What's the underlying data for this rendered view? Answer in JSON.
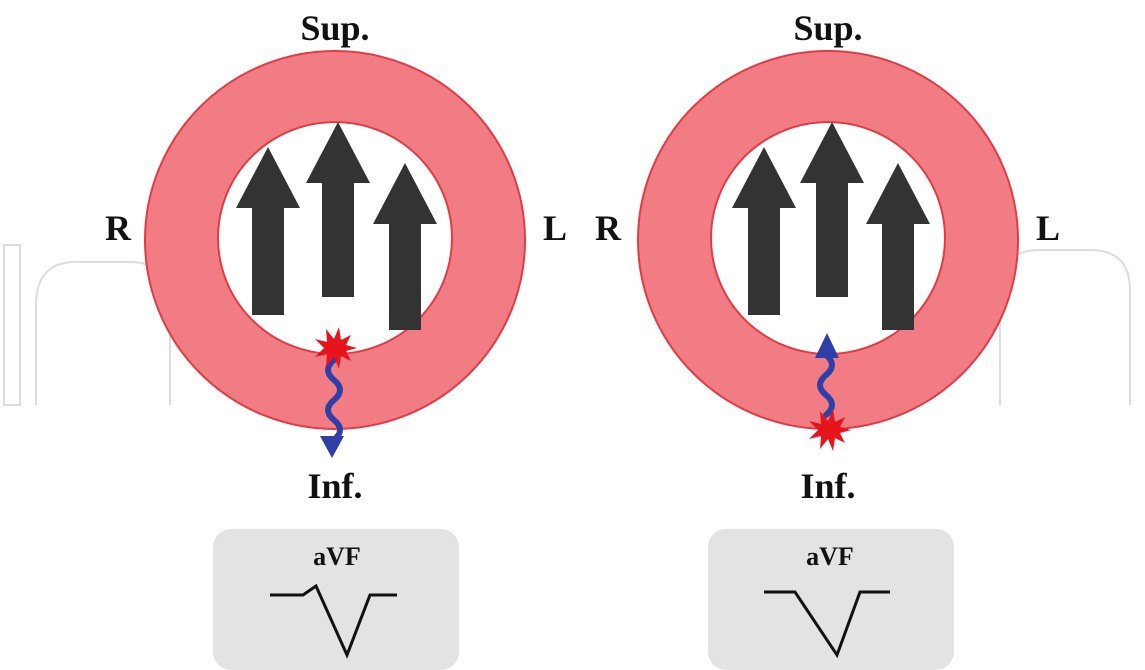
{
  "panels": [
    {
      "label_top": "Sup.",
      "label_bottom": "Inf.",
      "label_left": "R",
      "label_right": "L",
      "lead_label": "aVF"
    },
    {
      "label_top": "Sup.",
      "label_bottom": "Inf.",
      "label_left": "R",
      "label_right": "L",
      "lead_label": "aVF"
    }
  ],
  "colors": {
    "ring_fill": "#f27c83",
    "ring_stroke": "#e23b46",
    "arrow_fill": "#333333",
    "wave_color": "#2f3fa8",
    "burst_color": "#e8141c",
    "ecg_box": "#e3e3e3",
    "ecg_trace": "#111111"
  },
  "watermark": "IntechOpen"
}
